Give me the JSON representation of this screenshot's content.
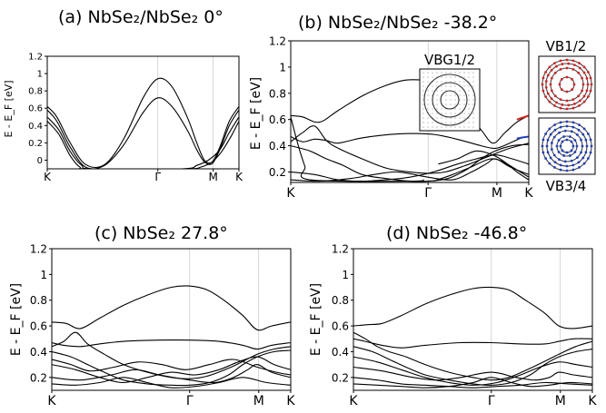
{
  "chart_data": [
    {
      "type": "line",
      "panel": "a",
      "title": "(a) NbSe₂/NbSe₂ 0°",
      "ylabel": "E - E_F [eV]",
      "ylim": [
        -0.1,
        1.2
      ],
      "yticks": [
        "0",
        "0.2",
        "0.4",
        "0.6",
        "0.8",
        "1",
        "1.2"
      ],
      "ytick_values": [
        0,
        0.2,
        0.4,
        0.6,
        0.8,
        1.0,
        1.2
      ],
      "xticks": [
        "K",
        "Γ",
        "M",
        "K"
      ],
      "xtick_positions": [
        0,
        0.577,
        0.866,
        1.0
      ],
      "series": [
        {
          "x": [
            0,
            0.05,
            0.12,
            0.2,
            0.3,
            0.4,
            0.5,
            0.577,
            0.65,
            0.73,
            0.78,
            0.82,
            0.86,
            0.9,
            0.95,
            1.0
          ],
          "values": [
            0.62,
            0.5,
            0.2,
            -0.05,
            -0.05,
            0.25,
            0.72,
            0.94,
            0.85,
            0.5,
            0.2,
            0.0,
            -0.02,
            0.15,
            0.45,
            0.62
          ]
        },
        {
          "x": [
            0,
            0.05,
            0.12,
            0.2,
            0.3,
            0.4,
            0.5,
            0.577,
            0.65,
            0.73,
            0.78,
            0.82,
            0.86,
            0.9,
            0.95,
            1.0
          ],
          "values": [
            0.58,
            0.45,
            0.15,
            -0.08,
            -0.06,
            0.18,
            0.55,
            0.72,
            0.62,
            0.35,
            0.12,
            -0.02,
            -0.04,
            0.12,
            0.4,
            0.58
          ]
        },
        {
          "x": [
            0,
            0.06,
            0.12,
            0.18,
            0.24,
            0.7,
            0.78,
            0.84,
            0.9,
            0.95,
            1.0
          ],
          "values": [
            0.5,
            0.35,
            0.1,
            -0.06,
            -0.1,
            -0.1,
            -0.06,
            0.0,
            0.12,
            0.32,
            0.5
          ]
        },
        {
          "x": [
            0,
            0.06,
            0.12,
            0.17,
            0.22,
            0.72,
            0.8,
            0.86,
            0.91,
            0.96,
            1.0
          ],
          "values": [
            0.45,
            0.3,
            0.05,
            -0.08,
            -0.1,
            -0.1,
            -0.08,
            -0.02,
            0.1,
            0.28,
            0.45
          ]
        }
      ]
    },
    {
      "type": "line",
      "panel": "b",
      "title": "(b) NbSe₂/NbSe₂ -38.2°",
      "ylabel": "E - E_F [eV]",
      "ylim": [
        0.12,
        1.2
      ],
      "yticks": [
        "0.2",
        "0.4",
        "0.6",
        "0.8",
        "1",
        "1.2"
      ],
      "ytick_values": [
        0.2,
        0.4,
        0.6,
        0.8,
        1.0,
        1.2
      ],
      "xticks": [
        "K",
        "Γ",
        "M",
        "K"
      ],
      "xtick_positions": [
        0,
        0.577,
        0.866,
        1.0
      ],
      "series": [
        {
          "x": [
            0,
            0.05,
            0.12,
            0.2,
            0.3,
            0.4,
            0.48,
            0.56,
            0.6,
            0.65,
            0.72,
            0.8,
            0.85,
            0.9,
            0.95,
            1.0
          ],
          "values": [
            0.63,
            0.62,
            0.58,
            0.67,
            0.78,
            0.86,
            0.9,
            0.9,
            0.88,
            0.82,
            0.7,
            0.52,
            0.42,
            0.5,
            0.58,
            0.63
          ]
        },
        {
          "x": [
            0,
            0.05,
            0.1,
            0.15,
            0.2,
            0.3,
            0.45,
            0.577,
            0.65,
            0.72,
            0.8,
            0.86,
            0.92,
            0.97,
            1.0
          ],
          "values": [
            0.47,
            0.43,
            0.45,
            0.44,
            0.42,
            0.46,
            0.49,
            0.49,
            0.47,
            0.44,
            0.4,
            0.38,
            0.42,
            0.46,
            0.47
          ]
        },
        {
          "x": [
            0,
            0.05,
            0.1,
            0.15,
            0.2,
            0.3,
            0.4,
            0.5,
            0.577,
            0.65,
            0.75,
            0.86,
            0.92,
            1.0
          ],
          "values": [
            0.43,
            0.5,
            0.55,
            0.44,
            0.38,
            0.3,
            0.23,
            0.2,
            0.19,
            0.2,
            0.26,
            0.34,
            0.38,
            0.42
          ]
        },
        {
          "x": [
            0,
            0.08,
            0.15,
            0.22,
            0.3,
            0.4,
            0.5,
            0.577,
            0.66,
            0.74,
            0.8,
            0.86,
            0.93,
            1.0
          ],
          "values": [
            0.4,
            0.36,
            0.3,
            0.25,
            0.18,
            0.15,
            0.13,
            0.13,
            0.15,
            0.22,
            0.3,
            0.36,
            0.4,
            0.41
          ]
        },
        {
          "x": [
            0,
            0.1,
            0.2,
            0.3,
            0.4,
            0.5,
            0.6,
            0.7,
            0.78,
            0.86,
            0.93,
            1.0
          ],
          "values": [
            0.2,
            0.18,
            0.14,
            0.13,
            0.14,
            0.16,
            0.2,
            0.26,
            0.3,
            0.33,
            0.3,
            0.26
          ]
        },
        {
          "x": [
            0,
            0.12,
            0.25,
            0.35,
            0.45,
            0.577,
            0.68,
            0.76,
            0.82,
            0.86,
            0.92,
            1.0
          ],
          "values": [
            0.14,
            0.13,
            0.15,
            0.18,
            0.2,
            0.16,
            0.14,
            0.2,
            0.26,
            0.3,
            0.24,
            0.18
          ]
        },
        {
          "x": [
            0.6,
            0.68,
            0.76,
            0.84,
            0.9,
            0.95,
            1.0
          ],
          "values": [
            0.13,
            0.18,
            0.24,
            0.3,
            0.27,
            0.2,
            0.14
          ]
        },
        {
          "x": [
            0.62,
            0.7,
            0.78,
            0.86,
            0.92,
            1.0
          ],
          "values": [
            0.26,
            0.3,
            0.36,
            0.32,
            0.25,
            0.16
          ]
        },
        {
          "x": [
            0,
            0.02,
            0.04,
            0.06,
            0.08,
            0.5,
            0.56
          ],
          "values": [
            0.62,
            0.48,
            0.35,
            0.24,
            0.14,
            0.13,
            0.14
          ]
        }
      ],
      "highlight_colors": {
        "red": "#d62020",
        "blue": "#1f3fbf"
      }
    },
    {
      "type": "line",
      "panel": "c",
      "title": "(c) NbSe₂ 27.8°",
      "ylabel": "E - E_F [eV]",
      "ylim": [
        0.1,
        1.2
      ],
      "yticks": [
        "0.2",
        "0.4",
        "0.6",
        "0.8",
        "1",
        "1.2"
      ],
      "ytick_values": [
        0.2,
        0.4,
        0.6,
        0.8,
        1.0,
        1.2
      ],
      "xticks": [
        "K",
        "Γ",
        "M",
        "K"
      ],
      "xtick_positions": [
        0,
        0.577,
        0.866,
        1.0
      ],
      "series": [
        {
          "x": [
            0,
            0.06,
            0.12,
            0.2,
            0.3,
            0.4,
            0.5,
            0.577,
            0.65,
            0.72,
            0.8,
            0.86,
            0.92,
            1.0
          ],
          "values": [
            0.63,
            0.62,
            0.58,
            0.66,
            0.76,
            0.84,
            0.9,
            0.91,
            0.88,
            0.8,
            0.68,
            0.57,
            0.6,
            0.63
          ]
        },
        {
          "x": [
            0,
            0.05,
            0.12,
            0.2,
            0.3,
            0.45,
            0.577,
            0.7,
            0.8,
            0.86,
            0.92,
            1.0
          ],
          "values": [
            0.47,
            0.45,
            0.44,
            0.46,
            0.48,
            0.49,
            0.49,
            0.48,
            0.45,
            0.42,
            0.45,
            0.47
          ]
        },
        {
          "x": [
            0,
            0.05,
            0.1,
            0.15,
            0.22,
            0.3,
            0.4,
            0.5,
            0.577,
            0.65,
            0.75,
            0.86,
            0.93,
            1.0
          ],
          "values": [
            0.44,
            0.48,
            0.55,
            0.46,
            0.38,
            0.3,
            0.24,
            0.2,
            0.19,
            0.21,
            0.28,
            0.38,
            0.42,
            0.44
          ]
        },
        {
          "x": [
            0,
            0.08,
            0.15,
            0.22,
            0.3,
            0.4,
            0.5,
            0.577,
            0.66,
            0.74,
            0.8,
            0.86,
            0.93,
            1.0
          ],
          "values": [
            0.4,
            0.36,
            0.3,
            0.24,
            0.18,
            0.15,
            0.14,
            0.14,
            0.16,
            0.22,
            0.3,
            0.36,
            0.4,
            0.41
          ]
        },
        {
          "x": [
            0,
            0.1,
            0.2,
            0.3,
            0.4,
            0.5,
            0.6,
            0.7,
            0.78,
            0.86,
            0.93,
            1.0
          ],
          "values": [
            0.3,
            0.26,
            0.2,
            0.16,
            0.2,
            0.24,
            0.22,
            0.26,
            0.32,
            0.36,
            0.3,
            0.26
          ]
        },
        {
          "x": [
            0,
            0.12,
            0.25,
            0.35,
            0.45,
            0.577,
            0.68,
            0.76,
            0.82,
            0.86,
            0.92,
            1.0
          ],
          "values": [
            0.2,
            0.18,
            0.22,
            0.26,
            0.22,
            0.18,
            0.16,
            0.2,
            0.26,
            0.3,
            0.24,
            0.2
          ]
        },
        {
          "x": [
            0,
            0.1,
            0.2,
            0.3,
            0.4,
            0.5,
            0.6,
            0.7,
            0.8,
            0.9,
            1.0
          ],
          "values": [
            0.15,
            0.14,
            0.16,
            0.2,
            0.16,
            0.12,
            0.13,
            0.16,
            0.2,
            0.16,
            0.14
          ]
        },
        {
          "x": [
            0,
            0.08,
            0.16,
            0.26,
            0.36,
            0.46,
            0.56,
            0.66,
            0.76,
            0.86,
            0.94,
            1.0
          ],
          "values": [
            0.34,
            0.3,
            0.25,
            0.28,
            0.32,
            0.3,
            0.26,
            0.3,
            0.34,
            0.28,
            0.24,
            0.22
          ]
        }
      ]
    },
    {
      "type": "line",
      "panel": "d",
      "title": "(d) NbSe₂ -46.8°",
      "ylabel": "E - E_F [eV]",
      "ylim": [
        0.1,
        1.2
      ],
      "yticks": [
        "0.2",
        "0.4",
        "0.6",
        "0.8",
        "1",
        "1.2"
      ],
      "ytick_values": [
        0.2,
        0.4,
        0.6,
        0.8,
        1.0,
        1.2
      ],
      "xticks": [
        "K",
        "Γ",
        "M",
        "K"
      ],
      "xtick_positions": [
        0,
        0.577,
        0.866,
        1.0
      ],
      "series": [
        {
          "x": [
            0,
            0.06,
            0.12,
            0.2,
            0.3,
            0.4,
            0.5,
            0.577,
            0.65,
            0.72,
            0.8,
            0.86,
            0.92,
            1.0
          ],
          "values": [
            0.6,
            0.61,
            0.62,
            0.68,
            0.77,
            0.84,
            0.89,
            0.9,
            0.88,
            0.8,
            0.7,
            0.6,
            0.58,
            0.6
          ]
        },
        {
          "x": [
            0,
            0.05,
            0.12,
            0.2,
            0.3,
            0.45,
            0.577,
            0.7,
            0.8,
            0.86,
            0.92,
            1.0
          ],
          "values": [
            0.5,
            0.48,
            0.45,
            0.43,
            0.45,
            0.47,
            0.47,
            0.46,
            0.46,
            0.48,
            0.5,
            0.5
          ]
        },
        {
          "x": [
            0,
            0.05,
            0.1,
            0.15,
            0.22,
            0.3,
            0.4,
            0.5,
            0.577,
            0.65,
            0.75,
            0.86,
            0.93,
            1.0
          ],
          "values": [
            0.55,
            0.5,
            0.44,
            0.4,
            0.36,
            0.3,
            0.24,
            0.2,
            0.18,
            0.2,
            0.28,
            0.38,
            0.44,
            0.48
          ]
        },
        {
          "x": [
            0,
            0.08,
            0.15,
            0.22,
            0.3,
            0.4,
            0.5,
            0.577,
            0.66,
            0.74,
            0.8,
            0.86,
            0.93,
            1.0
          ],
          "values": [
            0.44,
            0.4,
            0.34,
            0.28,
            0.22,
            0.18,
            0.15,
            0.14,
            0.16,
            0.22,
            0.3,
            0.36,
            0.4,
            0.42
          ]
        },
        {
          "x": [
            0,
            0.1,
            0.2,
            0.3,
            0.4,
            0.5,
            0.6,
            0.7,
            0.78,
            0.86,
            0.93,
            1.0
          ],
          "values": [
            0.36,
            0.32,
            0.26,
            0.2,
            0.16,
            0.14,
            0.16,
            0.22,
            0.28,
            0.32,
            0.3,
            0.28
          ]
        },
        {
          "x": [
            0,
            0.12,
            0.25,
            0.35,
            0.45,
            0.577,
            0.68,
            0.76,
            0.82,
            0.86,
            0.92,
            1.0
          ],
          "values": [
            0.28,
            0.25,
            0.2,
            0.18,
            0.2,
            0.24,
            0.2,
            0.18,
            0.2,
            0.24,
            0.22,
            0.2
          ]
        },
        {
          "x": [
            0,
            0.1,
            0.2,
            0.3,
            0.4,
            0.5,
            0.6,
            0.7,
            0.8,
            0.9,
            1.0
          ],
          "values": [
            0.2,
            0.18,
            0.15,
            0.14,
            0.13,
            0.12,
            0.13,
            0.14,
            0.16,
            0.15,
            0.14
          ]
        },
        {
          "x": [
            0,
            0.1,
            0.2,
            0.3,
            0.4,
            0.5,
            0.577,
            0.66,
            0.74,
            0.82,
            0.9,
            1.0
          ],
          "values": [
            0.15,
            0.14,
            0.13,
            0.12,
            0.13,
            0.16,
            0.2,
            0.16,
            0.13,
            0.14,
            0.16,
            0.15
          ]
        }
      ]
    }
  ],
  "insets": {
    "vbg_label": "VBG1/2",
    "vb12_label": "VB1/2",
    "vb34_label": "VB3/4"
  }
}
